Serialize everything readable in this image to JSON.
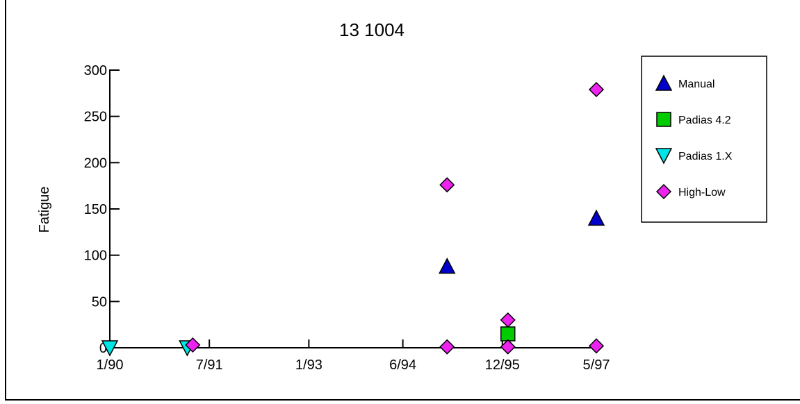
{
  "chart_data": {
    "type": "scatter",
    "title": "13 1004",
    "xlabel": "",
    "ylabel": "Fatigue",
    "xlim": [
      "1/90",
      "5/97"
    ],
    "ylim": [
      0,
      300
    ],
    "x_ticks": [
      "1/90",
      "7/91",
      "1/93",
      "6/94",
      "12/95",
      "5/97"
    ],
    "y_ticks": [
      0,
      50,
      100,
      150,
      200,
      250,
      300
    ],
    "grid": false,
    "legend_position": "top-right",
    "series": [
      {
        "name": "Manual",
        "marker": "triangle-up",
        "color": "#0000cc",
        "points": [
          {
            "x": "2/95",
            "y": 88
          },
          {
            "x": "5/97",
            "y": 140
          }
        ]
      },
      {
        "name": "Padias 4.2",
        "marker": "square",
        "color": "#00cc00",
        "points": [
          {
            "x": "1/96",
            "y": 15
          }
        ]
      },
      {
        "name": "Padias 1.X",
        "marker": "triangle-down",
        "color": "#00e5e5",
        "points": [
          {
            "x": "1/90",
            "y": 0
          },
          {
            "x": "3/91",
            "y": 0
          }
        ]
      },
      {
        "name": "High-Low",
        "marker": "diamond",
        "color": "#ee22ee",
        "points": [
          {
            "x": "4/91",
            "y": 3
          },
          {
            "x": "2/95",
            "y": 176
          },
          {
            "x": "2/95",
            "y": 1
          },
          {
            "x": "1/96",
            "y": 30
          },
          {
            "x": "1/96",
            "y": 1
          },
          {
            "x": "5/97",
            "y": 279
          },
          {
            "x": "5/97",
            "y": 2
          }
        ]
      }
    ]
  }
}
